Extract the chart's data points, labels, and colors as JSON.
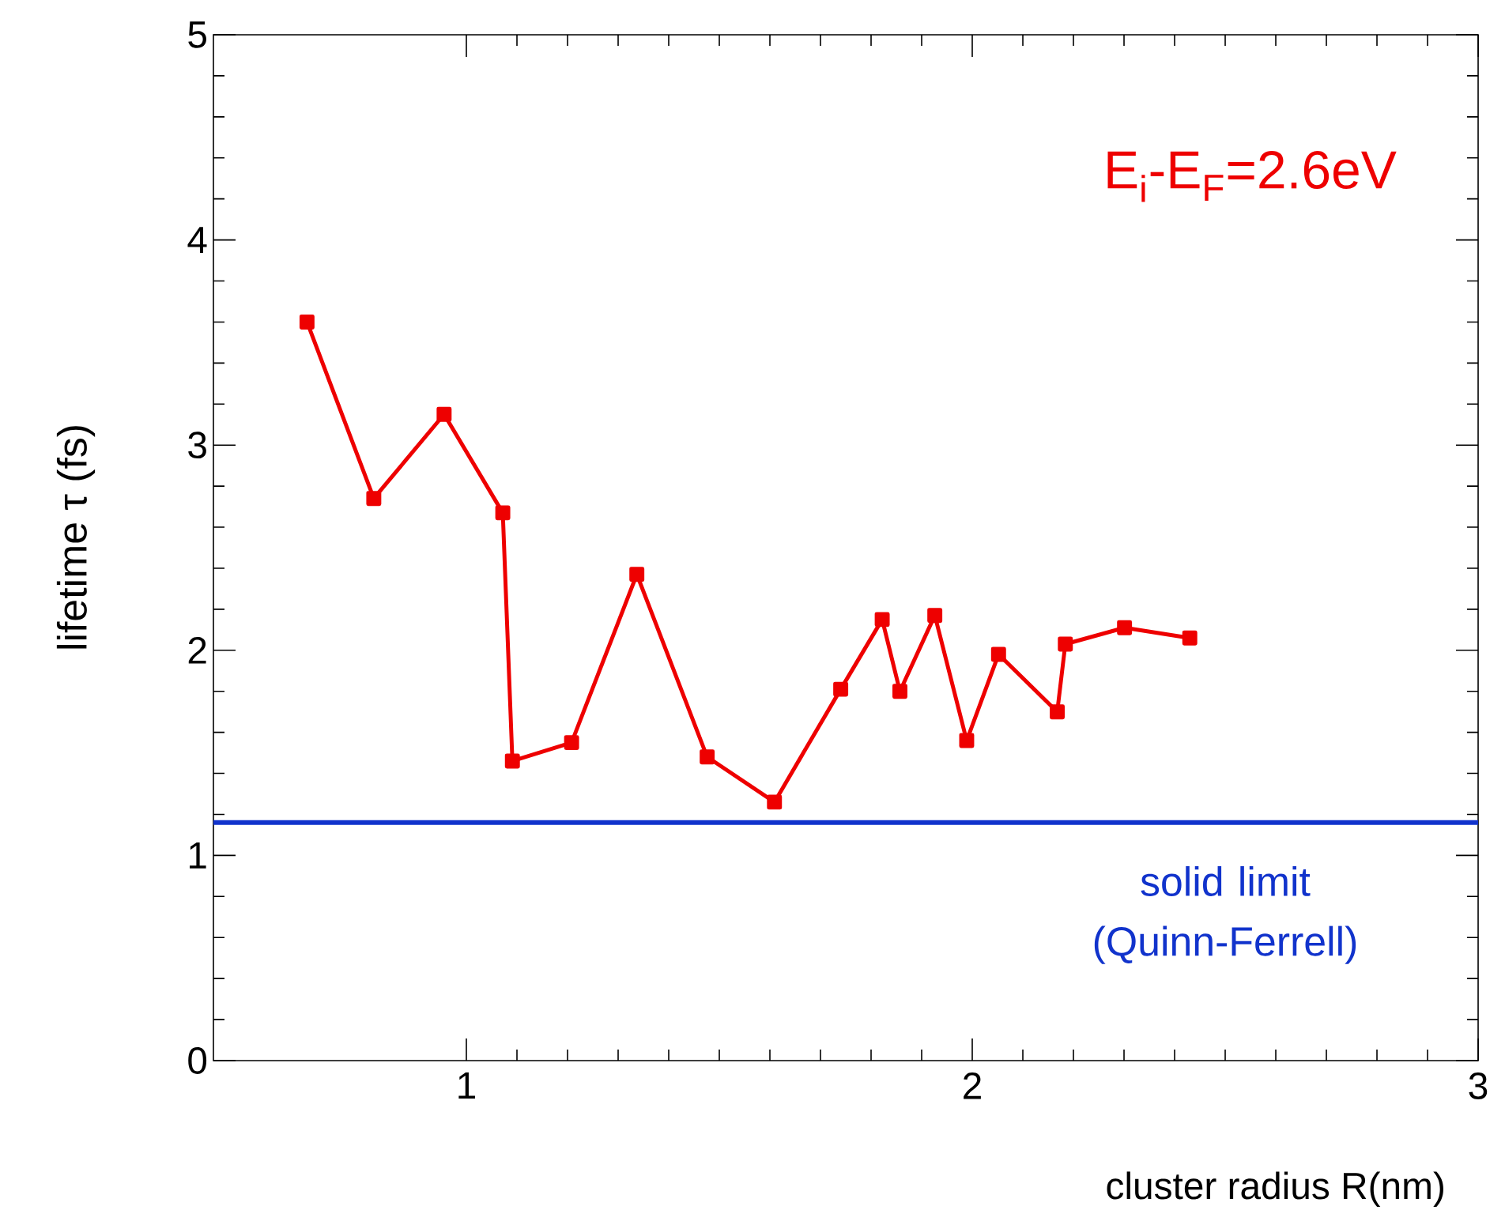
{
  "chart_data": {
    "type": "line",
    "xlabel": "cluster radius R(nm)",
    "ylabel": "lifetime τ (fs)",
    "x": [
      0.685,
      0.817,
      0.956,
      1.072,
      1.091,
      1.208,
      1.337,
      1.476,
      1.609,
      1.74,
      1.822,
      1.857,
      1.926,
      1.989,
      2.052,
      2.168,
      2.184,
      2.301,
      2.43
    ],
    "series": [
      {
        "color": "#ee0000",
        "values": [
          3.6,
          2.74,
          3.15,
          2.67,
          1.46,
          1.55,
          2.37,
          1.48,
          1.26,
          1.81,
          2.15,
          1.8,
          2.17,
          1.56,
          1.98,
          1.7,
          2.03,
          2.11,
          2.06
        ]
      }
    ],
    "marker": "square",
    "line_style": "solid",
    "xlim": [
      0.5,
      3
    ],
    "xticks": [
      1,
      2,
      3
    ],
    "ylim": [
      0,
      5
    ],
    "yticks": [
      0,
      1,
      2,
      3,
      4,
      5
    ],
    "ref_lines": [
      {
        "axis": "y",
        "value": 1.16,
        "label": "solid limit (Quinn-Ferrell)",
        "color": "#1133cc"
      }
    ],
    "annotations": [
      "E$_{i}$-E$_{F}$=2.6eV"
    ]
  }
}
